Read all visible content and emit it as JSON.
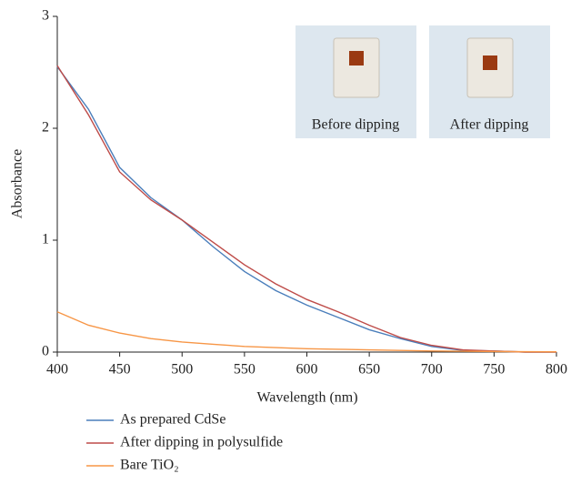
{
  "chart_data": {
    "type": "line",
    "x_label": "Wavelength (nm)",
    "y_label": "Absorbance",
    "x": [
      400,
      425,
      450,
      475,
      500,
      525,
      550,
      575,
      600,
      625,
      650,
      675,
      700,
      725,
      750,
      775,
      800
    ],
    "series": [
      {
        "name": "As prepared CdSe",
        "color": "#4a7ebb",
        "values": [
          2.55,
          2.17,
          1.65,
          1.38,
          1.18,
          0.94,
          0.72,
          0.55,
          0.42,
          0.31,
          0.2,
          0.12,
          0.05,
          0.015,
          0.01,
          0,
          0
        ]
      },
      {
        "name": "After dipping in polysulfide",
        "color": "#be4b48",
        "values": [
          2.56,
          2.12,
          1.61,
          1.36,
          1.18,
          0.98,
          0.78,
          0.61,
          0.47,
          0.36,
          0.24,
          0.13,
          0.06,
          0.02,
          0.01,
          0,
          0
        ]
      },
      {
        "name": "Bare TiO₂",
        "color": "#f79646",
        "values": [
          0.36,
          0.24,
          0.17,
          0.12,
          0.09,
          0.07,
          0.05,
          0.04,
          0.03,
          0.025,
          0.02,
          0.015,
          0.01,
          0.008,
          0.005,
          0.003,
          0.002
        ]
      }
    ],
    "xlim": [
      400,
      800
    ],
    "xticks": [
      400,
      450,
      500,
      550,
      600,
      650,
      700,
      750,
      800
    ],
    "ylim": [
      0,
      3
    ],
    "yticks": [
      0,
      1,
      2,
      3
    ],
    "annotations": [
      "Before dipping",
      "After dipping"
    ]
  }
}
